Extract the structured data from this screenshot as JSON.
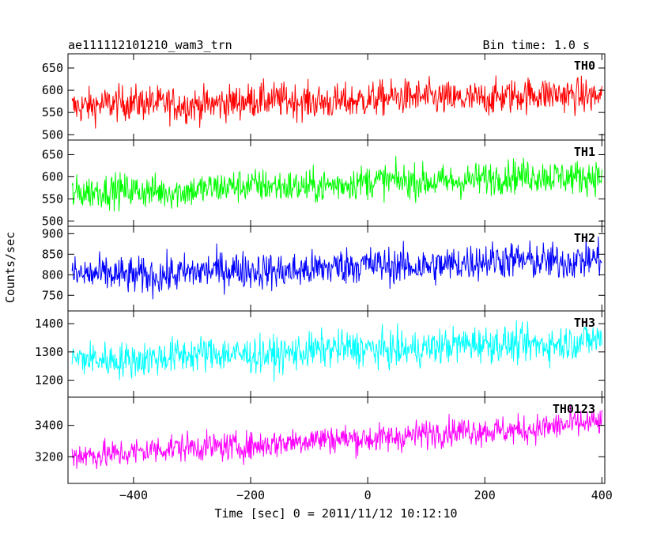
{
  "chart_data": {
    "type": "line",
    "title_left": "ae111112101210_wam3_trn",
    "title_right": "Bin time: 1.0 s",
    "xlabel": "Time [sec] 0 = 2011/11/12 10:12:10",
    "ylabel": "Counts/sec",
    "xlim": [
      -512,
      405
    ],
    "x_ticks": [
      -400,
      -200,
      0,
      200,
      400
    ],
    "x_tick_labels": [
      "−400",
      "−200",
      "0",
      "200",
      "400"
    ],
    "x_range": [
      -505,
      400
    ],
    "grid": false,
    "panels": [
      {
        "name": "TH0",
        "color": "#ff0000",
        "ylim": [
          488,
          682
        ],
        "y_ticks": [
          500,
          550,
          600,
          650
        ],
        "trend": [
          565,
          590
        ],
        "noise": 28
      },
      {
        "name": "TH1",
        "color": "#00ff00",
        "ylim": [
          488,
          683
        ],
        "y_ticks": [
          500,
          550,
          600,
          650
        ],
        "trend": [
          562,
          605
        ],
        "noise": 27
      },
      {
        "name": "TH2",
        "color": "#0000ff",
        "ylim": [
          712,
          918
        ],
        "y_ticks": [
          750,
          800,
          850,
          900
        ],
        "trend": [
          795,
          840
        ],
        "noise": 32
      },
      {
        "name": "TH3",
        "color": "#00ffff",
        "ylim": [
          1140,
          1445
        ],
        "y_ticks": [
          1200,
          1300,
          1400
        ],
        "trend": [
          1270,
          1340
        ],
        "noise": 45
      },
      {
        "name": "TH0123",
        "color": "#ff00ff",
        "ylim": [
          3030,
          3580
        ],
        "y_ticks": [
          3200,
          3400
        ],
        "trend": [
          3210,
          3410
        ],
        "noise": 65
      }
    ]
  }
}
